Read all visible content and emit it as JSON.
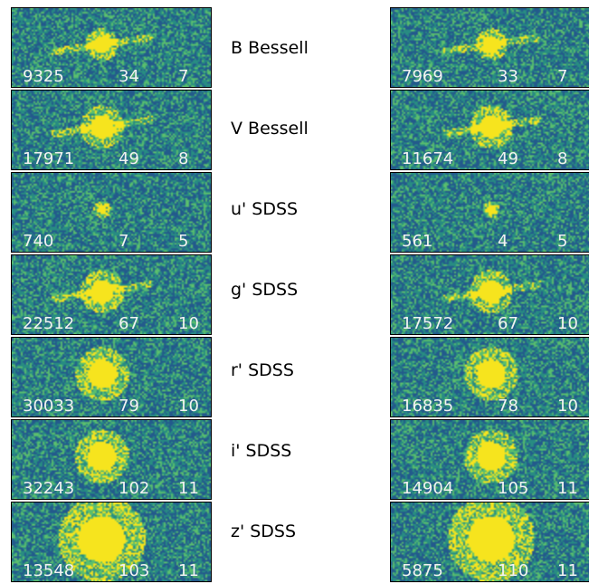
{
  "filters": [
    {
      "name": "B Bessell",
      "left": [
        "9325",
        "34",
        "7"
      ],
      "right": [
        "7969",
        "33",
        "7"
      ]
    },
    {
      "name": "V Bessell",
      "left": [
        "17971",
        "49",
        "8"
      ],
      "right": [
        "11674",
        "49",
        "8"
      ]
    },
    {
      "name": "u' SDSS",
      "left": [
        "740",
        "7",
        "5"
      ],
      "right": [
        "561",
        "4",
        "5"
      ]
    },
    {
      "name": "g' SDSS",
      "left": [
        "22512",
        "67",
        "10"
      ],
      "right": [
        "17572",
        "67",
        "10"
      ]
    },
    {
      "name": "r' SDSS",
      "left": [
        "30033",
        "79",
        "10"
      ],
      "right": [
        "16835",
        "78",
        "10"
      ]
    },
    {
      "name": "i' SDSS",
      "left": [
        "32243",
        "102",
        "11"
      ],
      "right": [
        "14904",
        "105",
        "11"
      ]
    },
    {
      "name": "z' SDSS",
      "left": [
        "13548",
        "103",
        "11"
      ],
      "right": [
        "5875",
        "110",
        "11"
      ]
    }
  ],
  "colors": {
    "background": "#1f5f8c",
    "noise_mid": "#2a8a78",
    "source": "#f5e31a"
  }
}
